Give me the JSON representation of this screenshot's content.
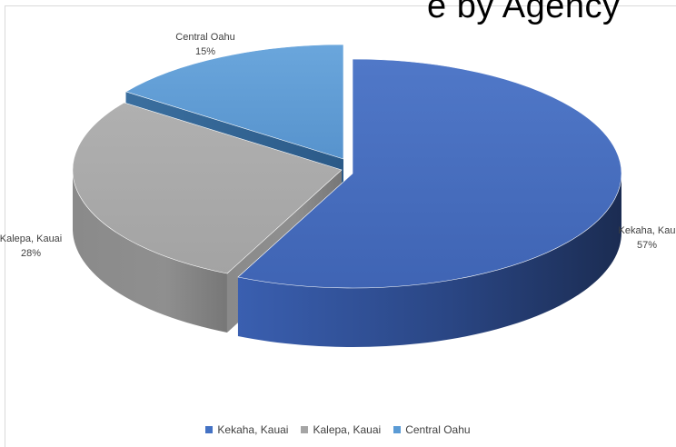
{
  "title_fragment": "e by Agency",
  "chart_data": {
    "type": "pie",
    "style": "3d-exploded",
    "title": "",
    "categories": [
      "Kekaha, Kauai",
      "Kalepa, Kauai",
      "Central Oahu"
    ],
    "values": [
      57,
      28,
      15
    ],
    "value_labels": [
      "57%",
      "28%",
      "15%"
    ],
    "slice_labels": [
      "Kekaha, Kau",
      "Kalepa, Kauai",
      "Central Oahu"
    ],
    "colors": [
      "#4472c4",
      "#a5a5a5",
      "#5b9bd5"
    ],
    "legend_position": "bottom"
  }
}
